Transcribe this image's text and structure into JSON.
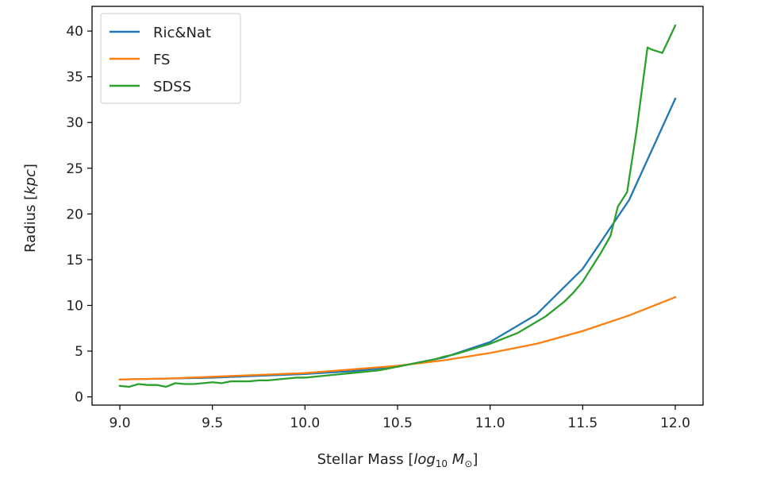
{
  "chart_data": {
    "type": "line",
    "xlabel": {
      "text": "Stellar Mass [",
      "math": "log",
      "sub": "10",
      "math2": " M",
      "sun": "⊙",
      "close": "]"
    },
    "ylabel": {
      "text": "Radius [",
      "math": "kpc",
      "close": "]"
    },
    "xlim": [
      8.85,
      12.15
    ],
    "ylim": [
      -0.9,
      42.7
    ],
    "xticks": [
      "9.0",
      "9.5",
      "10.0",
      "10.5",
      "11.0",
      "11.5",
      "12.0"
    ],
    "yticks": [
      "0",
      "5",
      "10",
      "15",
      "20",
      "25",
      "30",
      "35",
      "40"
    ],
    "grid": false,
    "legend_position": "top-left",
    "series": [
      {
        "name": "Ric&Nat",
        "color": "#1f77b4",
        "x": [
          9.0,
          9.25,
          9.5,
          9.75,
          10.0,
          10.25,
          10.5,
          10.75,
          11.0,
          11.25,
          11.5,
          11.75,
          12.0
        ],
        "y": [
          1.9,
          2.0,
          2.1,
          2.3,
          2.5,
          2.8,
          3.3,
          4.3,
          6.0,
          9.0,
          14.0,
          21.5,
          32.6
        ]
      },
      {
        "name": "FS",
        "color": "#ff7f0e",
        "x": [
          9.0,
          9.25,
          9.5,
          9.75,
          10.0,
          10.25,
          10.5,
          10.75,
          11.0,
          11.25,
          11.5,
          11.75,
          12.0
        ],
        "y": [
          1.9,
          2.0,
          2.2,
          2.4,
          2.6,
          3.0,
          3.4,
          4.0,
          4.8,
          5.8,
          7.2,
          8.9,
          10.9
        ]
      },
      {
        "name": "SDSS",
        "color": "#2ca02c",
        "x": [
          9.0,
          9.05,
          9.1,
          9.15,
          9.2,
          9.25,
          9.3,
          9.35,
          9.4,
          9.45,
          9.5,
          9.55,
          9.6,
          9.65,
          9.7,
          9.75,
          9.8,
          9.85,
          9.9,
          9.95,
          10.0,
          10.05,
          10.1,
          10.15,
          10.2,
          10.25,
          10.3,
          10.35,
          10.4,
          10.45,
          10.5,
          10.55,
          10.6,
          10.65,
          10.7,
          10.75,
          10.8,
          10.85,
          10.9,
          10.95,
          11.0,
          11.05,
          11.1,
          11.15,
          11.2,
          11.25,
          11.3,
          11.35,
          11.4,
          11.45,
          11.5,
          11.55,
          11.6,
          11.65,
          11.69,
          11.74,
          11.79,
          11.85,
          11.87,
          11.93,
          12.0
        ],
        "y": [
          1.2,
          1.1,
          1.4,
          1.3,
          1.3,
          1.1,
          1.5,
          1.4,
          1.4,
          1.5,
          1.6,
          1.5,
          1.7,
          1.7,
          1.7,
          1.8,
          1.8,
          1.9,
          2.0,
          2.1,
          2.1,
          2.2,
          2.3,
          2.4,
          2.5,
          2.6,
          2.7,
          2.8,
          2.9,
          3.1,
          3.3,
          3.5,
          3.7,
          3.9,
          4.1,
          4.4,
          4.6,
          4.9,
          5.2,
          5.5,
          5.8,
          6.2,
          6.6,
          7.0,
          7.6,
          8.2,
          8.8,
          9.6,
          10.4,
          11.4,
          12.6,
          14.2,
          15.8,
          17.6,
          20.8,
          22.4,
          29.0,
          38.2,
          38.0,
          37.6,
          40.6
        ]
      }
    ]
  }
}
